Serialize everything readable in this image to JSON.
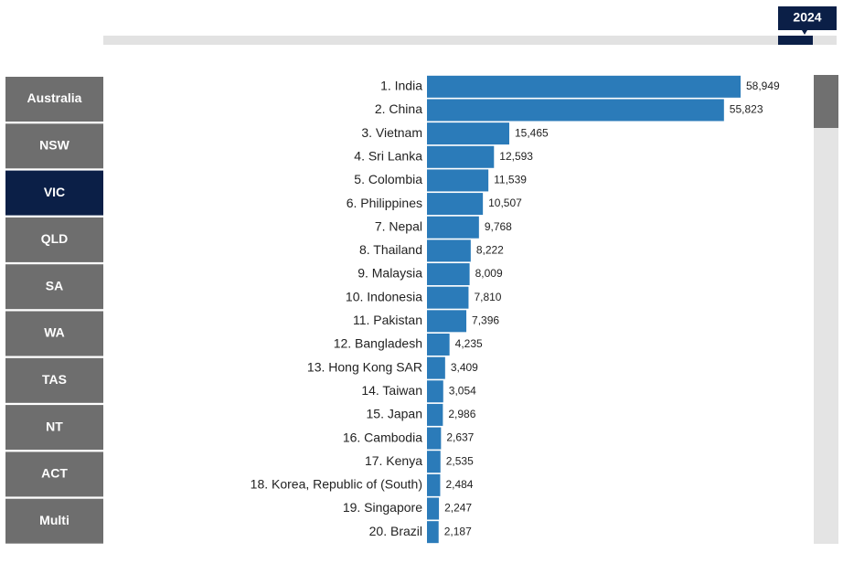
{
  "timeline": {
    "selected_year": "2024"
  },
  "nav": [
    "Australia",
    "NSW",
    "VIC",
    "QLD",
    "SA",
    "WA",
    "TAS",
    "NT",
    "ACT",
    "Multi"
  ],
  "selected_nav": 2,
  "chart_data": {
    "type": "hbar",
    "color": "#2b7bb9",
    "categories": [
      "1. India",
      "2. China",
      "3. Vietnam",
      "4. Sri Lanka",
      "5. Colombia",
      "6. Philippines",
      "7. Nepal",
      "8. Thailand",
      "9. Malaysia",
      "10. Indonesia",
      "11. Pakistan",
      "12. Bangladesh",
      "13. Hong Kong SAR",
      "14. Taiwan",
      "15. Japan",
      "16. Cambodia",
      "17. Kenya",
      "18. Korea, Republic of (South)",
      "19. Singapore",
      "20. Brazil"
    ],
    "values": [
      58949,
      55823,
      15465,
      12593,
      11539,
      10507,
      9768,
      8222,
      8009,
      7810,
      7396,
      4235,
      3409,
      3054,
      2986,
      2637,
      2535,
      2484,
      2247,
      2187
    ],
    "value_labels": [
      "58,949",
      "55,823",
      "15,465",
      "12,593",
      "11,539",
      "10,507",
      "9,768",
      "8,222",
      "8,009",
      "7,810",
      "7,396",
      "4,235",
      "3,409",
      "3,054",
      "2,986",
      "2,637",
      "2,535",
      "2,484",
      "2,247",
      "2,187"
    ]
  }
}
